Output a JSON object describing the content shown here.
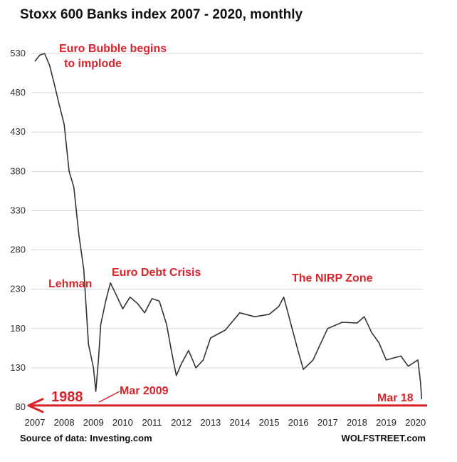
{
  "chart_data": {
    "type": "line",
    "title": "Stoxx 600 Banks index 2007 - 2020, monthly",
    "xlabel": "",
    "ylabel": "",
    "x_ticks": [
      "2007",
      "2008",
      "2009",
      "2010",
      "2011",
      "2012",
      "2013",
      "2014",
      "2015",
      "2016",
      "2017",
      "2018",
      "2019",
      "2020"
    ],
    "y_ticks": [
      80,
      130,
      180,
      230,
      280,
      330,
      380,
      430,
      480,
      530
    ],
    "ylim": [
      80,
      545
    ],
    "xlim": [
      2007.0,
      2020.25
    ],
    "grid": "horizontal",
    "series": [
      {
        "x": [
          2007.0,
          2007.17,
          2007.33,
          2007.5,
          2007.67,
          2007.83,
          2008.0,
          2008.17,
          2008.33,
          2008.5,
          2008.67,
          2008.83,
          2009.0,
          2009.08,
          2009.17,
          2009.25,
          2009.42,
          2009.58,
          2009.75,
          2010.0,
          2010.25,
          2010.5,
          2010.75,
          2011.0,
          2011.25,
          2011.5,
          2011.67,
          2011.83,
          2012.0,
          2012.25,
          2012.5,
          2012.75,
          2013.0,
          2013.5,
          2014.0,
          2014.5,
          2015.0,
          2015.33,
          2015.5,
          2015.75,
          2016.0,
          2016.17,
          2016.5,
          2016.75,
          2017.0,
          2017.5,
          2018.0,
          2018.25,
          2018.5,
          2018.75,
          2019.0,
          2019.5,
          2019.75,
          2020.0,
          2020.08,
          2020.17,
          2020.21
        ],
        "values": [
          520,
          528,
          530,
          515,
          490,
          465,
          440,
          380,
          360,
          300,
          255,
          160,
          130,
          100,
          140,
          185,
          215,
          238,
          225,
          205,
          220,
          212,
          200,
          218,
          215,
          185,
          150,
          120,
          135,
          152,
          130,
          140,
          168,
          178,
          200,
          195,
          198,
          208,
          220,
          185,
          150,
          128,
          140,
          160,
          180,
          188,
          187,
          195,
          175,
          162,
          140,
          145,
          132,
          138,
          140,
          112,
          90
        ]
      }
    ],
    "annotations": {
      "euro_bubble": "Euro Bubble begins",
      "euro_bubble_2": "to implode",
      "lehman": "Lehman",
      "euro_debt": "Euro Debt Crisis",
      "nirp": "The NIRP Zone",
      "mar2009": "Mar 2009",
      "y1988": "1988",
      "mar18": "Mar 18"
    },
    "level_1988": 82,
    "source": "Source of data: Investing.com",
    "credit": "WOLFSTREET.com"
  }
}
